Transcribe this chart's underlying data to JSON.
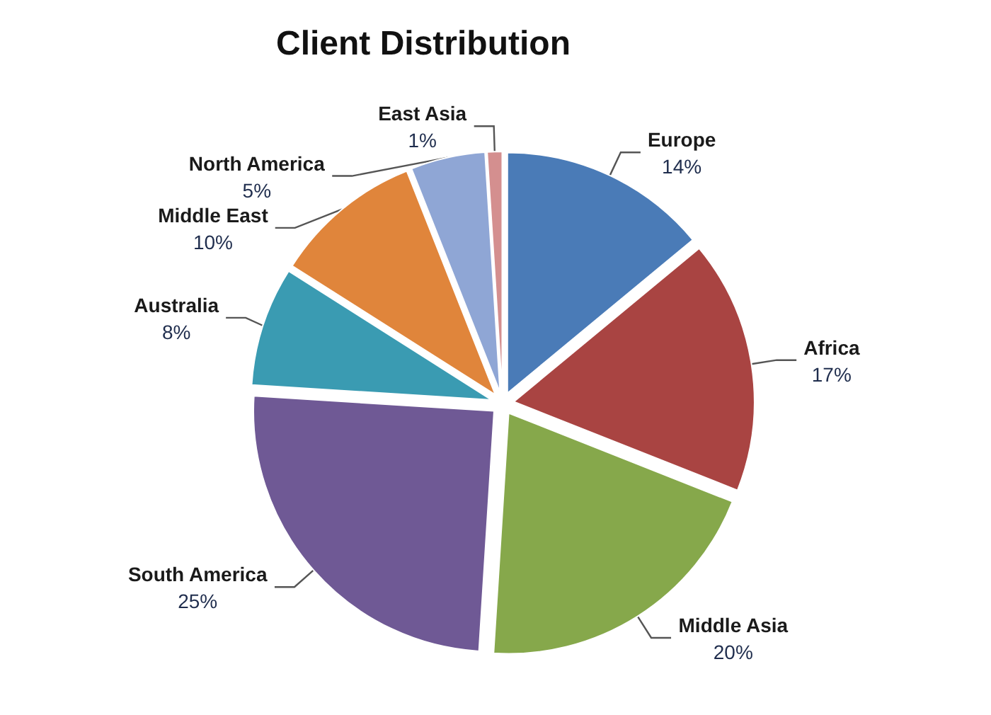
{
  "chart_data": {
    "type": "pie",
    "title": "Client Distribution",
    "categories": [
      "Europe",
      "Africa",
      "Middle Asia",
      "South America",
      "Australia",
      "Middle East",
      "North America",
      "East Asia"
    ],
    "values": [
      14,
      17,
      20,
      25,
      8,
      10,
      5,
      1
    ],
    "value_labels": [
      "14%",
      "17%",
      "20%",
      "25%",
      "8%",
      "10%",
      "5%",
      "1%"
    ],
    "colors": [
      "#4a7bb7",
      "#a94442",
      "#86a84b",
      "#6f5995",
      "#3a9bb2",
      "#e0853b",
      "#8fa6d5",
      "#d48f8f"
    ]
  }
}
